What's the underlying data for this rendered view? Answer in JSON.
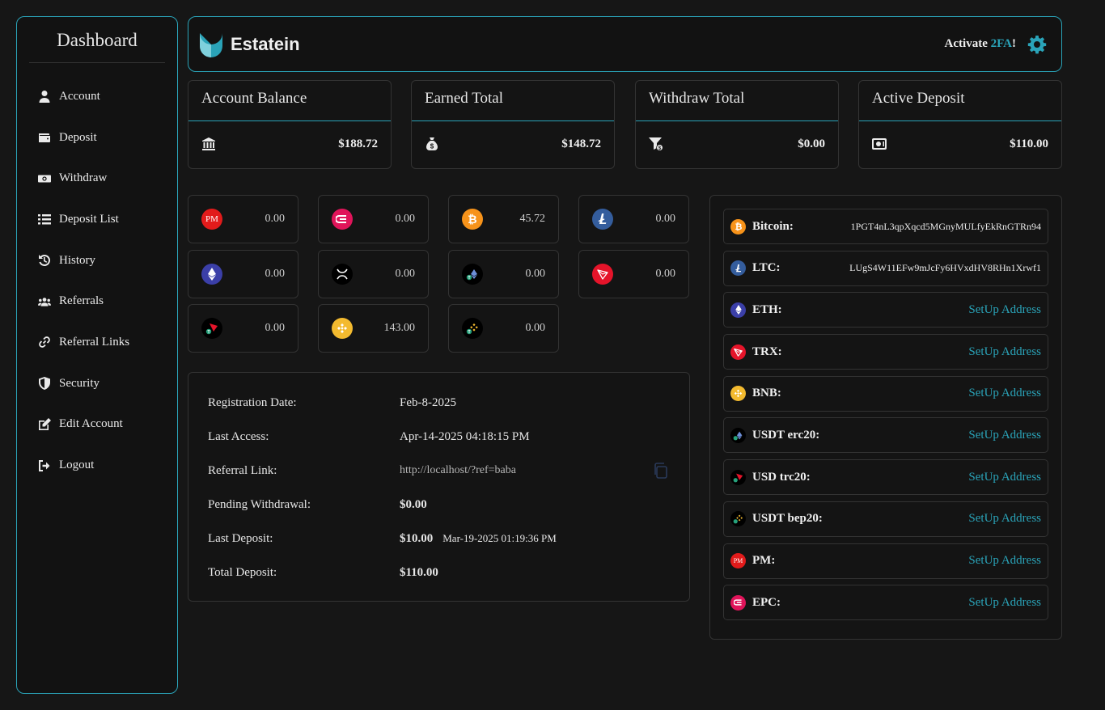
{
  "sidebar": {
    "title": "Dashboard",
    "items": [
      {
        "label": "Account",
        "icon": "user-icon"
      },
      {
        "label": "Deposit",
        "icon": "wallet-icon"
      },
      {
        "label": "Withdraw",
        "icon": "money-bill-icon"
      },
      {
        "label": "Deposit List",
        "icon": "list-icon"
      },
      {
        "label": "History",
        "icon": "history-icon"
      },
      {
        "label": "Referrals",
        "icon": "users-icon"
      },
      {
        "label": "Referral Links",
        "icon": "link-icon"
      },
      {
        "label": "Security",
        "icon": "shield-icon"
      },
      {
        "label": "Edit Account",
        "icon": "edit-icon"
      },
      {
        "label": "Logout",
        "icon": "logout-icon"
      }
    ]
  },
  "header": {
    "brand": "Estatein",
    "activate_prefix": "Activate ",
    "activate_highlight": "2FA",
    "activate_suffix": "!",
    "accent": "#2aa3b8"
  },
  "stats": [
    {
      "title": "Account Balance",
      "value": "$188.72",
      "icon": "bank-icon"
    },
    {
      "title": "Earned Total",
      "value": "$148.72",
      "icon": "money-bag-icon"
    },
    {
      "title": "Withdraw Total",
      "value": "$0.00",
      "icon": "funnel-dollar-icon"
    },
    {
      "title": "Active Deposit",
      "value": "$110.00",
      "icon": "safe-icon"
    }
  ],
  "coins": [
    {
      "id": "pm",
      "value": "0.00"
    },
    {
      "id": "epc",
      "value": "0.00"
    },
    {
      "id": "btc",
      "value": "45.72"
    },
    {
      "id": "ltc",
      "value": "0.00"
    },
    {
      "id": "eth",
      "value": "0.00"
    },
    {
      "id": "xrp",
      "value": "0.00"
    },
    {
      "id": "usdt-erc20",
      "value": "0.00"
    },
    {
      "id": "trx",
      "value": "0.00"
    },
    {
      "id": "usdt-trc20",
      "value": "0.00"
    },
    {
      "id": "bnb",
      "value": "143.00"
    },
    {
      "id": "usdt-bep20",
      "value": "0.00"
    }
  ],
  "coin_icon_labels": {
    "pm": "PM"
  },
  "info": {
    "registration_label": "Registration Date:",
    "registration_value": "Feb-8-2025",
    "last_access_label": "Last Access:",
    "last_access_value": "Apr-14-2025 04:18:15 PM",
    "referral_label": "Referral Link:",
    "referral_value": "http://localhost/?ref=baba",
    "pending_label": "Pending Withdrawal:",
    "pending_value": "$0.00",
    "last_deposit_label": "Last Deposit:",
    "last_deposit_value": "$10.00",
    "last_deposit_date": "Mar-19-2025 01:19:36 PM",
    "total_deposit_label": "Total Deposit:",
    "total_deposit_value": "$110.00"
  },
  "wallets": {
    "setup_label": "SetUp Address",
    "items": [
      {
        "id": "btc",
        "name": "Bitcoin:",
        "address": "1PGT4nL3qpXqcd5MGnyMULfyEkRnGTRn94"
      },
      {
        "id": "ltc",
        "name": "LTC:",
        "address": "LUgS4W11EFw9mJcFy6HVxdHV8RHn1Xrwf1"
      },
      {
        "id": "eth",
        "name": "ETH:",
        "address": ""
      },
      {
        "id": "trx",
        "name": "TRX:",
        "address": ""
      },
      {
        "id": "bnb",
        "name": "BNB:",
        "address": ""
      },
      {
        "id": "usdt-erc20",
        "name": "USDT erc20:",
        "address": ""
      },
      {
        "id": "usdt-trc20",
        "name": "USD trc20:",
        "address": ""
      },
      {
        "id": "usdt-bep20",
        "name": "USDT bep20:",
        "address": ""
      },
      {
        "id": "pm",
        "name": "PM:",
        "address": ""
      },
      {
        "id": "epc",
        "name": "EPC:",
        "address": ""
      }
    ]
  },
  "colors": {
    "btc": "#f7931a",
    "ltc": "#345d9d",
    "eth": "#3b3fa8",
    "trx": "#e5142a",
    "bnb": "#f3ba2f",
    "pm": "#e21b1b",
    "epc": "#e0145a",
    "xrp": "#000000",
    "usdt": "#000000"
  }
}
